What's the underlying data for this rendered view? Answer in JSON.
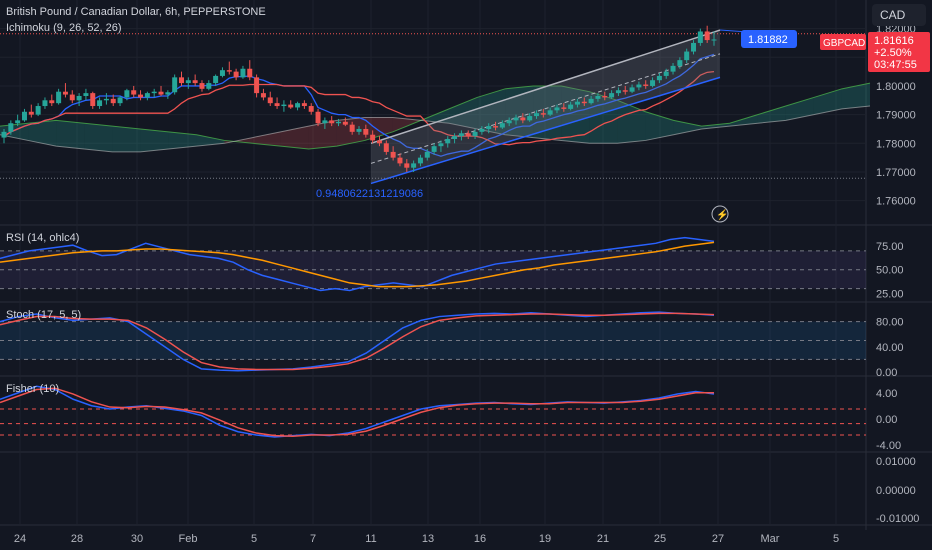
{
  "header": {
    "symbol_title": "British Pound / Canadian Dollar, 6h, PEPPERSTONE",
    "indicator_ichimoku": "Ichimoku (9, 26, 52, 26)",
    "currency_button": "CAD"
  },
  "price_panel": {
    "channel_label": "1.81882",
    "ticker_tag": "GBPCAD",
    "last_price": "1.81616",
    "change": "+2.50%",
    "countdown": "03:47:55",
    "fib_label": "0.9480622131219086",
    "y_ticks": [
      "1.82000",
      "1.81000",
      "1.80000",
      "1.79000",
      "1.78000",
      "1.77000",
      "1.76000"
    ]
  },
  "rsi_panel": {
    "title": "RSI (14, ohlc4)",
    "y_ticks": [
      "75.00",
      "50.00",
      "25.00"
    ]
  },
  "stoch_panel": {
    "title": "Stoch (17, 5, 5)",
    "y_ticks": [
      "80.00",
      "40.00",
      "0.00"
    ]
  },
  "fisher_panel": {
    "title": "Fisher (10)",
    "y_ticks": [
      "4.00",
      "0.00",
      "-4.00"
    ]
  },
  "empty_panel": {
    "y_ticks": [
      "0.01000",
      "0.00000",
      "-0.01000"
    ]
  },
  "x_axis": {
    "labels": [
      "24",
      "28",
      "30",
      "Feb",
      "5",
      "7",
      "11",
      "13",
      "16",
      "19",
      "21",
      "25",
      "27",
      "Mar",
      "5"
    ]
  },
  "colors": {
    "background": "#131722",
    "up": "#26a69a",
    "down": "#ef5350",
    "blue": "#2962ff",
    "orange": "#ff9800",
    "grid": "#2a2e39"
  },
  "chart_data": [
    {
      "type": "candlestick",
      "title": "British Pound / Canadian Dollar, 6h, PEPPERSTONE",
      "ylim": [
        1.755,
        1.823
      ],
      "candles_ohlc": [
        [
          1.782,
          1.785,
          1.78,
          1.784
        ],
        [
          1.784,
          1.788,
          1.783,
          1.787
        ],
        [
          1.787,
          1.79,
          1.786,
          1.788
        ],
        [
          1.788,
          1.792,
          1.7875,
          1.791
        ],
        [
          1.791,
          1.7935,
          1.789,
          1.79
        ],
        [
          1.79,
          1.794,
          1.7895,
          1.793
        ],
        [
          1.793,
          1.796,
          1.792,
          1.795
        ],
        [
          1.795,
          1.797,
          1.793,
          1.794
        ],
        [
          1.794,
          1.799,
          1.7935,
          1.798
        ],
        [
          1.798,
          1.801,
          1.796,
          1.797
        ],
        [
          1.797,
          1.7985,
          1.794,
          1.795
        ],
        [
          1.795,
          1.7975,
          1.793,
          1.7965
        ],
        [
          1.7965,
          1.799,
          1.795,
          1.7975
        ],
        [
          1.7975,
          1.798,
          1.792,
          1.793
        ],
        [
          1.793,
          1.796,
          1.792,
          1.795
        ],
        [
          1.795,
          1.7975,
          1.7935,
          1.7955
        ],
        [
          1.7955,
          1.797,
          1.793,
          1.794
        ],
        [
          1.794,
          1.7965,
          1.793,
          1.796
        ],
        [
          1.796,
          1.799,
          1.795,
          1.7985
        ],
        [
          1.7985,
          1.8,
          1.796,
          1.797
        ],
        [
          1.797,
          1.7985,
          1.795,
          1.796
        ],
        [
          1.796,
          1.798,
          1.795,
          1.7975
        ],
        [
          1.7975,
          1.799,
          1.796,
          1.798
        ],
        [
          1.798,
          1.8,
          1.7965,
          1.797
        ],
        [
          1.797,
          1.7985,
          1.7955,
          1.7978
        ],
        [
          1.7978,
          1.804,
          1.797,
          1.803
        ],
        [
          1.803,
          1.805,
          1.8,
          1.801
        ],
        [
          1.801,
          1.803,
          1.799,
          1.802
        ],
        [
          1.802,
          1.804,
          1.8,
          1.801
        ],
        [
          1.801,
          1.802,
          1.798,
          1.799
        ],
        [
          1.799,
          1.802,
          1.7985,
          1.801
        ],
        [
          1.801,
          1.804,
          1.8,
          1.8035
        ],
        [
          1.8035,
          1.8065,
          1.803,
          1.8055
        ],
        [
          1.8055,
          1.8085,
          1.804,
          1.805
        ],
        [
          1.805,
          1.806,
          1.802,
          1.803
        ],
        [
          1.803,
          1.807,
          1.8025,
          1.806
        ],
        [
          1.806,
          1.809,
          1.802,
          1.803
        ],
        [
          1.803,
          1.804,
          1.796,
          1.7975
        ],
        [
          1.7975,
          1.799,
          1.795,
          1.796
        ],
        [
          1.796,
          1.798,
          1.793,
          1.794
        ],
        [
          1.794,
          1.796,
          1.792,
          1.793
        ],
        [
          1.793,
          1.795,
          1.791,
          1.7935
        ],
        [
          1.7935,
          1.795,
          1.792,
          1.7925
        ],
        [
          1.7925,
          1.7945,
          1.7915,
          1.794
        ],
        [
          1.794,
          1.795,
          1.792,
          1.793
        ],
        [
          1.793,
          1.794,
          1.79,
          1.791
        ],
        [
          1.791,
          1.792,
          1.786,
          1.787
        ],
        [
          1.787,
          1.789,
          1.785,
          1.788
        ],
        [
          1.788,
          1.7895,
          1.786,
          1.787
        ],
        [
          1.787,
          1.7885,
          1.786,
          1.7875
        ],
        [
          1.7875,
          1.789,
          1.786,
          1.7865
        ],
        [
          1.7865,
          1.7875,
          1.783,
          1.784
        ],
        [
          1.784,
          1.786,
          1.783,
          1.785
        ],
        [
          1.785,
          1.7865,
          1.782,
          1.783
        ],
        [
          1.783,
          1.7845,
          1.78,
          1.781
        ],
        [
          1.781,
          1.7825,
          1.779,
          1.78
        ],
        [
          1.78,
          1.781,
          1.776,
          1.777
        ],
        [
          1.777,
          1.779,
          1.774,
          1.775
        ],
        [
          1.775,
          1.7765,
          1.772,
          1.773
        ],
        [
          1.773,
          1.7745,
          1.77,
          1.7715
        ],
        [
          1.7715,
          1.774,
          1.77,
          1.773
        ],
        [
          1.773,
          1.776,
          1.772,
          1.775
        ],
        [
          1.775,
          1.778,
          1.774,
          1.777
        ],
        [
          1.777,
          1.78,
          1.776,
          1.779
        ],
        [
          1.779,
          1.781,
          1.777,
          1.78
        ],
        [
          1.78,
          1.7825,
          1.7785,
          1.7815
        ],
        [
          1.7815,
          1.7835,
          1.78,
          1.7825
        ],
        [
          1.7825,
          1.7845,
          1.781,
          1.7835
        ],
        [
          1.7835,
          1.7845,
          1.7815,
          1.7825
        ],
        [
          1.7825,
          1.785,
          1.7815,
          1.784
        ],
        [
          1.784,
          1.786,
          1.783,
          1.785
        ],
        [
          1.785,
          1.787,
          1.7835,
          1.786
        ],
        [
          1.786,
          1.7875,
          1.7845,
          1.7855
        ],
        [
          1.7855,
          1.788,
          1.785,
          1.787
        ],
        [
          1.787,
          1.789,
          1.786,
          1.788
        ],
        [
          1.788,
          1.79,
          1.7865,
          1.789
        ],
        [
          1.789,
          1.7905,
          1.787,
          1.788
        ],
        [
          1.788,
          1.7905,
          1.7875,
          1.7895
        ],
        [
          1.7895,
          1.7915,
          1.7885,
          1.7905
        ],
        [
          1.7905,
          1.792,
          1.789,
          1.79
        ],
        [
          1.79,
          1.7925,
          1.7895,
          1.7915
        ],
        [
          1.7915,
          1.7935,
          1.7905,
          1.7925
        ],
        [
          1.7925,
          1.794,
          1.791,
          1.792
        ],
        [
          1.792,
          1.7945,
          1.7915,
          1.7935
        ],
        [
          1.7935,
          1.7955,
          1.7925,
          1.7945
        ],
        [
          1.7945,
          1.796,
          1.793,
          1.794
        ],
        [
          1.794,
          1.7965,
          1.7935,
          1.7955
        ],
        [
          1.7955,
          1.7975,
          1.7945,
          1.7965
        ],
        [
          1.7965,
          1.798,
          1.795,
          1.796
        ],
        [
          1.796,
          1.7985,
          1.7955,
          1.7975
        ],
        [
          1.7975,
          1.7995,
          1.7965,
          1.7985
        ],
        [
          1.7985,
          1.8,
          1.797,
          1.798
        ],
        [
          1.798,
          1.8005,
          1.7975,
          1.7995
        ],
        [
          1.7995,
          1.8015,
          1.7985,
          1.8005
        ],
        [
          1.8005,
          1.802,
          1.799,
          1.8
        ],
        [
          1.8,
          1.803,
          1.7995,
          1.802
        ],
        [
          1.802,
          1.8045,
          1.801,
          1.8035
        ],
        [
          1.8035,
          1.806,
          1.8025,
          1.805
        ],
        [
          1.805,
          1.808,
          1.804,
          1.807
        ],
        [
          1.807,
          1.81,
          1.806,
          1.809
        ],
        [
          1.809,
          1.813,
          1.808,
          1.812
        ],
        [
          1.812,
          1.816,
          1.811,
          1.815
        ],
        [
          1.815,
          1.82,
          1.814,
          1.819
        ],
        [
          1.819,
          1.821,
          1.815,
          1.816
        ],
        [
          1.816,
          1.819,
          1.814,
          1.8162
        ]
      ],
      "ichimoku_cloud": {
        "note": "Senkou spans shifted 26 bars forward",
        "span_a": [
          1.786,
          1.787,
          1.788,
          1.787,
          1.786,
          1.785,
          1.784,
          1.783,
          1.781,
          1.78,
          1.779,
          1.778,
          1.779,
          1.781,
          1.784,
          1.788,
          1.792,
          1.796,
          1.799,
          1.8,
          1.8,
          1.798,
          1.795,
          1.791,
          1.788,
          1.786,
          1.787,
          1.79,
          1.793,
          1.796,
          1.799,
          1.801
        ],
        "span_b": [
          1.783,
          1.781,
          1.779,
          1.778,
          1.777,
          1.777,
          1.778,
          1.779,
          1.78,
          1.782,
          1.784,
          1.786,
          1.788,
          1.789,
          1.789,
          1.788,
          1.787,
          1.785,
          1.783,
          1.782,
          1.781,
          1.78,
          1.78,
          1.781,
          1.783,
          1.785,
          1.786,
          1.787,
          1.788,
          1.79,
          1.792,
          1.793
        ]
      },
      "channel_end_value": 1.81882
    },
    {
      "type": "line",
      "title": "RSI (14, ohlc4)",
      "ylim": [
        20,
        90
      ],
      "series": [
        {
          "name": "RSI",
          "values": [
            62,
            66,
            70,
            72,
            74,
            76,
            70,
            65,
            66,
            72,
            78,
            74,
            70,
            66,
            64,
            62,
            58,
            50,
            44,
            40,
            36,
            32,
            28,
            30,
            28,
            32,
            34,
            36,
            34,
            32,
            38,
            44,
            48,
            52,
            56,
            58,
            60,
            62,
            64,
            66,
            68,
            70,
            72,
            74,
            76,
            78,
            82,
            84,
            82,
            80
          ]
        },
        {
          "name": "Signal",
          "values": [
            58,
            60,
            62,
            64,
            66,
            68,
            69,
            70,
            70,
            71,
            72,
            72,
            71,
            70,
            69,
            68,
            66,
            63,
            60,
            56,
            52,
            48,
            44,
            40,
            36,
            34,
            32,
            32,
            32,
            33,
            34,
            36,
            38,
            41,
            44,
            47,
            50,
            52,
            55,
            57,
            59,
            61,
            63,
            65,
            67,
            69,
            72,
            75,
            77,
            79
          ]
        }
      ]
    },
    {
      "type": "line",
      "title": "Stoch (17, 5, 5)",
      "ylim": [
        0,
        100
      ],
      "series": [
        {
          "name": "%K",
          "values": [
            80,
            88,
            92,
            86,
            82,
            84,
            86,
            80,
            60,
            40,
            20,
            5,
            3,
            2,
            3,
            4,
            5,
            8,
            12,
            16,
            30,
            50,
            70,
            82,
            88,
            90,
            92,
            93,
            92,
            94,
            92,
            90,
            88,
            90,
            92,
            94,
            95,
            93,
            92,
            90
          ]
        },
        {
          "name": "%D",
          "values": [
            75,
            82,
            88,
            88,
            85,
            84,
            84,
            82,
            70,
            52,
            32,
            15,
            8,
            5,
            4,
            4,
            4,
            6,
            9,
            13,
            22,
            38,
            56,
            72,
            82,
            86,
            89,
            90,
            91,
            92,
            92,
            91,
            90,
            90,
            91,
            92,
            93,
            93,
            92,
            91
          ]
        }
      ]
    },
    {
      "type": "line",
      "title": "Fisher (10)",
      "ylim": [
        -4.5,
        5.5
      ],
      "series": [
        {
          "name": "Fisher",
          "values": [
            3.0,
            4.0,
            5.0,
            4.5,
            3.0,
            2.0,
            1.5,
            1.8,
            2.0,
            1.6,
            1.2,
            0.5,
            -1.0,
            -2.0,
            -2.5,
            -2.8,
            -2.6,
            -2.4,
            -2.6,
            -2.2,
            -1.5,
            -0.5,
            0.5,
            1.5,
            2.0,
            2.2,
            2.4,
            2.5,
            2.3,
            2.2,
            2.4,
            2.6,
            2.5,
            2.4,
            2.6,
            2.8,
            3.2,
            3.8,
            4.2,
            3.8
          ]
        },
        {
          "name": "Trigger",
          "values": [
            2.5,
            3.5,
            4.5,
            4.7,
            3.8,
            2.6,
            1.8,
            1.7,
            1.9,
            1.8,
            1.4,
            0.9,
            -0.2,
            -1.4,
            -2.2,
            -2.6,
            -2.7,
            -2.5,
            -2.5,
            -2.4,
            -1.9,
            -1.0,
            0.0,
            1.0,
            1.7,
            2.1,
            2.3,
            2.4,
            2.4,
            2.3,
            2.3,
            2.5,
            2.5,
            2.5,
            2.5,
            2.7,
            3.0,
            3.5,
            4.0,
            4.0
          ]
        }
      ]
    }
  ]
}
